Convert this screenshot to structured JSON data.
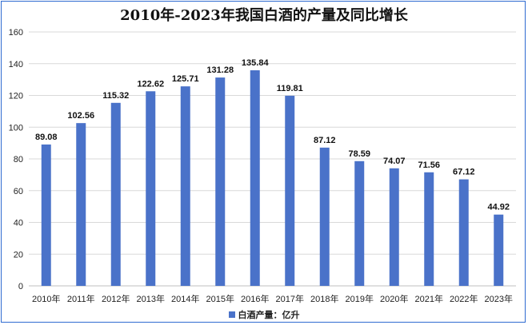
{
  "chart_data": {
    "type": "bar",
    "title": "2010年-2023年我国白酒的产量及同比增长",
    "categories": [
      "2010年",
      "2011年",
      "2012年",
      "2013年",
      "2014年",
      "2015年",
      "2016年",
      "2017年",
      "2018年",
      "2019年",
      "2020年",
      "2021年",
      "2022年",
      "2023年"
    ],
    "series": [
      {
        "name": "白酒产量：亿升",
        "values": [
          89.08,
          102.56,
          115.32,
          122.62,
          125.71,
          131.28,
          135.84,
          119.81,
          87.12,
          78.59,
          74.07,
          71.56,
          67.12,
          44.92
        ]
      }
    ],
    "ylim": [
      0,
      160
    ],
    "yticks": [
      0,
      20,
      40,
      60,
      80,
      100,
      120,
      140,
      160
    ],
    "grid": true,
    "legend_position": "bottom",
    "colors": {
      "bar": "#4a72c9",
      "grid": "#d9d9d9",
      "frame": "#2f6bd1"
    }
  }
}
